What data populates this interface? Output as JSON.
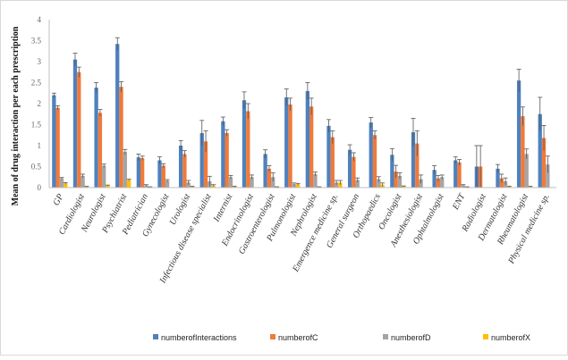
{
  "chart_data": {
    "type": "bar",
    "xlabel": "",
    "ylabel": "Mean of drug interaction per each prescription",
    "ylim": [
      0,
      4
    ],
    "yticks": [
      0,
      0.5,
      1,
      1.5,
      2,
      2.5,
      3,
      3.5,
      4
    ],
    "grid": false,
    "legend_position": "bottom",
    "error_bars": true,
    "categories": [
      "GP",
      "Cardiologist",
      "Neurologist",
      "Psychiatrist",
      "Pediatrician",
      "Gynecologist",
      "Urologist",
      "Infectious disease specialist",
      "Internist",
      "Endocrinologist",
      "Gastroenterologist",
      "Pulmonologist",
      "Nephrologist",
      "Emergence medicine sp.",
      "General surgeon",
      "Orthopaedics",
      "Oncologist",
      "Anesthesiologist",
      "Ophtalmologist",
      "ENT",
      "Radiologist",
      "Dermatologist",
      "Rheumatologist",
      "Physical medicine sp."
    ],
    "series": [
      {
        "name": "numberofInteractions",
        "color": "#4f81bd",
        "values": [
          2.2,
          3.05,
          2.38,
          3.42,
          0.72,
          0.65,
          1.0,
          1.3,
          1.58,
          2.08,
          0.8,
          2.15,
          2.3,
          1.47,
          0.9,
          1.55,
          0.78,
          1.32,
          0.42,
          0.65,
          0.5,
          0.45,
          2.55,
          1.75
        ],
        "errors": [
          0.05,
          0.15,
          0.12,
          0.15,
          0.08,
          0.08,
          0.12,
          0.3,
          0.1,
          0.2,
          0.1,
          0.2,
          0.2,
          0.15,
          0.12,
          0.12,
          0.15,
          0.33,
          0.1,
          0.08,
          0.5,
          0.1,
          0.27,
          0.4
        ]
      },
      {
        "name": "numberofC",
        "color": "#f07a3a",
        "values": [
          1.9,
          2.75,
          1.78,
          2.4,
          0.7,
          0.52,
          0.8,
          1.1,
          1.3,
          1.82,
          0.45,
          1.98,
          1.93,
          1.2,
          0.73,
          1.25,
          0.38,
          1.05,
          0.22,
          0.6,
          0.5,
          0.22,
          1.7,
          1.18
        ],
        "errors": [
          0.05,
          0.12,
          0.08,
          0.12,
          0.05,
          0.05,
          0.08,
          0.25,
          0.08,
          0.18,
          0.07,
          0.15,
          0.2,
          0.15,
          0.1,
          0.1,
          0.15,
          0.3,
          0.07,
          0.07,
          0.5,
          0.1,
          0.22,
          0.3
        ]
      },
      {
        "name": "numberofD",
        "color": "#a5a5a5",
        "values": [
          0.22,
          0.28,
          0.52,
          0.85,
          0.05,
          0.16,
          0.12,
          0.15,
          0.25,
          0.25,
          0.25,
          0.08,
          0.32,
          0.12,
          0.18,
          0.2,
          0.28,
          0.2,
          0.25,
          0.05,
          0,
          0.15,
          0.8,
          0.55
        ],
        "errors": [
          0.02,
          0.04,
          0.04,
          0.06,
          0.02,
          0.03,
          0.05,
          0.12,
          0.04,
          0.05,
          0.1,
          0.03,
          0.05,
          0.05,
          0.05,
          0.06,
          0.07,
          0.1,
          0.05,
          0.02,
          0,
          0.08,
          0.12,
          0.2
        ]
      },
      {
        "name": "numberofX",
        "color": "#ffc000",
        "values": [
          0.1,
          0.02,
          0.05,
          0.18,
          0.01,
          0,
          0.02,
          0.05,
          0.02,
          0,
          0.01,
          0.08,
          0.01,
          0.12,
          0,
          0.07,
          0.03,
          0,
          0,
          0.01,
          0,
          0.02,
          0.02,
          0
        ],
        "errors": [
          0.02,
          0.01,
          0.01,
          0.02,
          0.01,
          0,
          0.01,
          0.02,
          0.01,
          0,
          0.01,
          0.02,
          0.01,
          0.05,
          0,
          0.04,
          0.01,
          0,
          0,
          0.01,
          0,
          0.01,
          0.01,
          0
        ]
      }
    ]
  }
}
